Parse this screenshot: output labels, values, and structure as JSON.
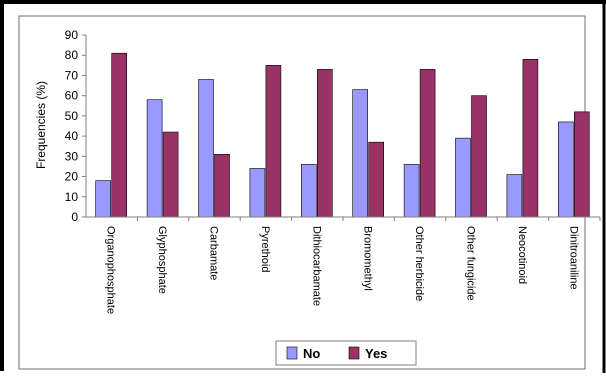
{
  "chart_data": {
    "type": "bar",
    "ylabel": "Frequencies (%)",
    "xlabel": "",
    "ylim": [
      0,
      90
    ],
    "yticks": [
      0,
      10,
      20,
      30,
      40,
      50,
      60,
      70,
      80,
      90
    ],
    "grid": false,
    "legend_position": "bottom-center",
    "categories": [
      "Organophosphate",
      "Glyphosphate",
      "Carbamate",
      "Pyrethoid",
      "Dithiocarbamate",
      "Bromomethyl",
      "Other herbicide",
      "Other fungicide",
      "Neocotinoid",
      "Dinitroaniline"
    ],
    "series": [
      {
        "name": "No",
        "color": "#9999ff",
        "values": [
          18,
          58,
          68,
          24,
          26,
          63,
          26,
          39,
          21,
          47
        ]
      },
      {
        "name": "Yes",
        "color": "#993366",
        "values": [
          81,
          42,
          31,
          75,
          73,
          37,
          73,
          60,
          78,
          52
        ]
      }
    ]
  },
  "colors": {
    "frame_border": "#000000",
    "axis": "#7f7f7f",
    "bar_outline": "#000000"
  }
}
